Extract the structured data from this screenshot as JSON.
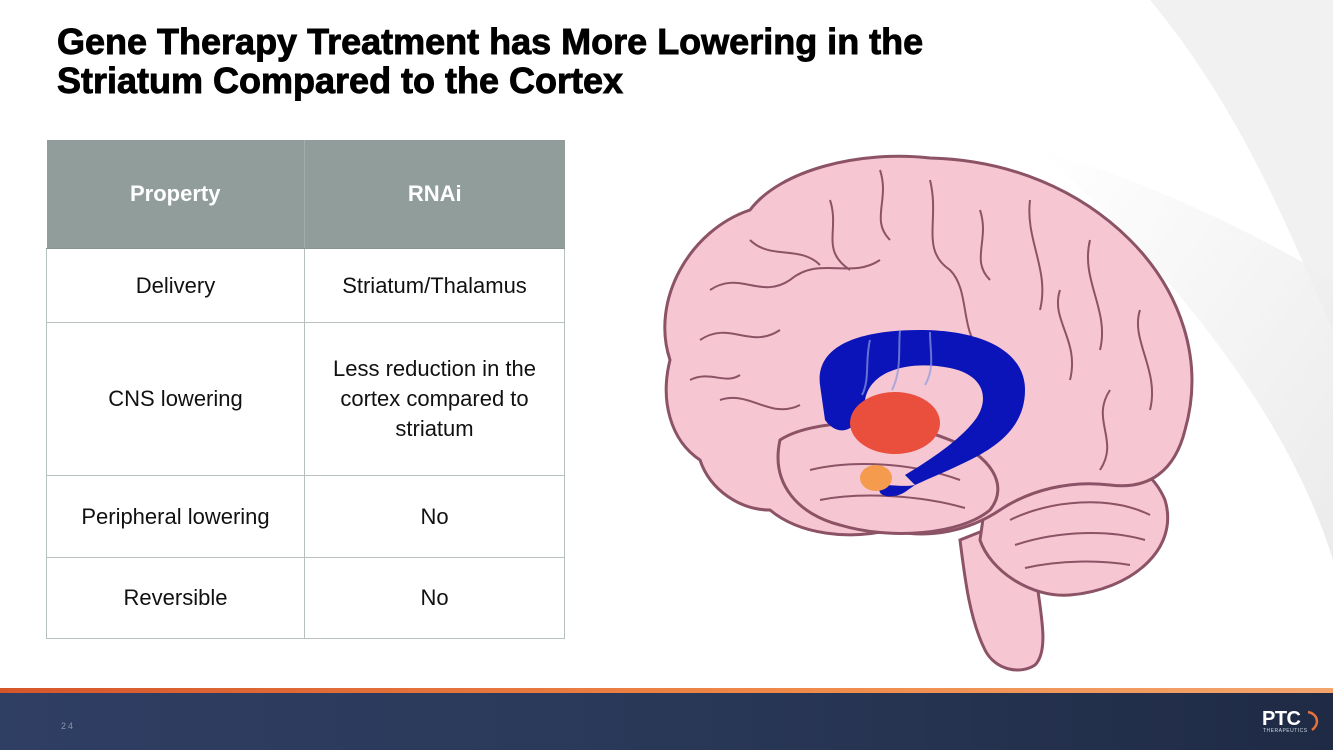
{
  "title": {
    "line1": "Gene Therapy Treatment has More Lowering in the",
    "line2": "Striatum Compared to the Cortex"
  },
  "table": {
    "headers": [
      "Property",
      "RNAi"
    ],
    "rows": [
      {
        "property": "Delivery",
        "rnai": "Striatum/Thalamus"
      },
      {
        "property": "CNS lowering",
        "rnai": "Less reduction in the cortex compared to striatum"
      },
      {
        "property": "Peripheral lowering",
        "rnai": "No"
      },
      {
        "property": "Reversible",
        "rnai": "No"
      }
    ]
  },
  "illustration": {
    "icon": "brain-illustration-icon",
    "colors": {
      "brain": "#f6c7d2",
      "outline": "#8c5266",
      "caudate": "#0a14b8",
      "putamen": "#ea4e3c",
      "amygdala": "#f49b4e"
    }
  },
  "footer": {
    "page_number": "24",
    "logo_text": "PTC",
    "logo_subtext": "THERAPEUTICS",
    "colors": {
      "bar": "#2d3b5e",
      "accent_line": "#e8703a"
    }
  }
}
